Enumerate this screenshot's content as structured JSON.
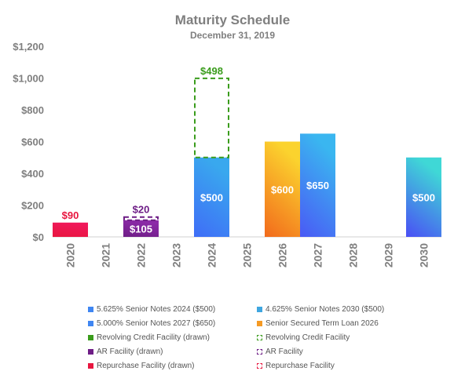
{
  "chart_data": {
    "type": "bar",
    "title": "Maturity Schedule",
    "subtitle": "December 31, 2019",
    "categories": [
      "2020",
      "2021",
      "2022",
      "2023",
      "2024",
      "2025",
      "2026",
      "2027",
      "2028",
      "2029",
      "2030"
    ],
    "ylim": [
      0,
      1200
    ],
    "yticks": [
      0,
      200,
      400,
      600,
      800,
      1000,
      1200
    ],
    "ytick_labels": [
      "$0",
      "$200",
      "$400",
      "$600",
      "$800",
      "$1,000",
      "$1,200"
    ],
    "grid": false,
    "bars": [
      {
        "category": "2020",
        "series": "Repurchase Facility (drawn)",
        "value": 90,
        "base": 0,
        "style": "solid",
        "colors": [
          "#e8163f",
          "#f0185a"
        ],
        "label": "$90",
        "label_position": "above",
        "label_color": "#e8163f"
      },
      {
        "category": "2022",
        "series": "AR Facility (drawn)",
        "value": 105,
        "base": 0,
        "style": "solid",
        "colors": [
          "#6e1d86",
          "#8c2aa8"
        ],
        "label": "$105",
        "label_position": "inside",
        "label_color": "#ffffff"
      },
      {
        "category": "2022",
        "series": "AR Facility",
        "value": 20,
        "base": 105,
        "style": "dashed",
        "colors": [
          "#6e1d86"
        ],
        "label": "$20",
        "label_position": "above",
        "label_color": "#6e1d86"
      },
      {
        "category": "2024",
        "series": "5.625% Senior Notes 2024 ($500)",
        "value": 500,
        "base": 0,
        "style": "solid",
        "colors": [
          "#3f6df7",
          "#39a8ee"
        ],
        "label": "$500",
        "label_position": "inside",
        "label_color": "#ffffff"
      },
      {
        "category": "2024",
        "series": "Revolving Credit Facility",
        "value": 498,
        "base": 500,
        "style": "dashed",
        "colors": [
          "#3a9c1c"
        ],
        "label": "$498",
        "label_position": "above",
        "label_color": "#3a9c1c"
      },
      {
        "category": "2026",
        "series": "Senior Secured Term Loan 2026",
        "value": 600,
        "base": 0,
        "style": "solid",
        "colors": [
          "#f26a1c",
          "#fbd32e"
        ],
        "label": "$600",
        "label_position": "inside",
        "label_color": "#ffffff"
      },
      {
        "category": "2027",
        "series": "5.000% Senior Notes 2027 ($650)",
        "value": 650,
        "base": 0,
        "style": "solid",
        "colors": [
          "#4a59f5",
          "#3ab6f0"
        ],
        "label": "$650",
        "label_position": "inside",
        "label_color": "#ffffff"
      },
      {
        "category": "2030",
        "series": "4.625% Senior Notes 2030 ($500)",
        "value": 500,
        "base": 0,
        "style": "solid",
        "colors": [
          "#4a4ef5",
          "#3fd8d6"
        ],
        "label": "$500",
        "label_position": "inside",
        "label_color": "#ffffff"
      }
    ],
    "legend": [
      {
        "label": "5.625% Senior Notes 2024 ($500)",
        "style": "solid",
        "color": "#3f86f2"
      },
      {
        "label": "4.625% Senior Notes 2030 ($500)",
        "style": "solid",
        "color": "#3fa6e0"
      },
      {
        "label": "5.000% Senior Notes 2027 ($650)",
        "style": "solid",
        "color": "#3f86f2"
      },
      {
        "label": "Senior Secured Term Loan 2026",
        "style": "solid",
        "color": "#f59a24"
      },
      {
        "label": "Revolving Credit Facility (drawn)",
        "style": "solid",
        "color": "#3a9c1c"
      },
      {
        "label": "Revolving Credit Facility",
        "style": "dashed",
        "color": "#3a9c1c"
      },
      {
        "label": "AR Facility (drawn)",
        "style": "solid",
        "color": "#6e1d86"
      },
      {
        "label": "AR Facility",
        "style": "dashed",
        "color": "#6e1d86"
      },
      {
        "label": "Repurchase Facility (drawn)",
        "style": "solid",
        "color": "#e8163f"
      },
      {
        "label": "Repurchase Facility",
        "style": "dashed",
        "color": "#e8163f"
      }
    ],
    "legend_position": "bottom",
    "axis_text_color": "#7f7f7f",
    "title_color": "#7f7f7f"
  }
}
